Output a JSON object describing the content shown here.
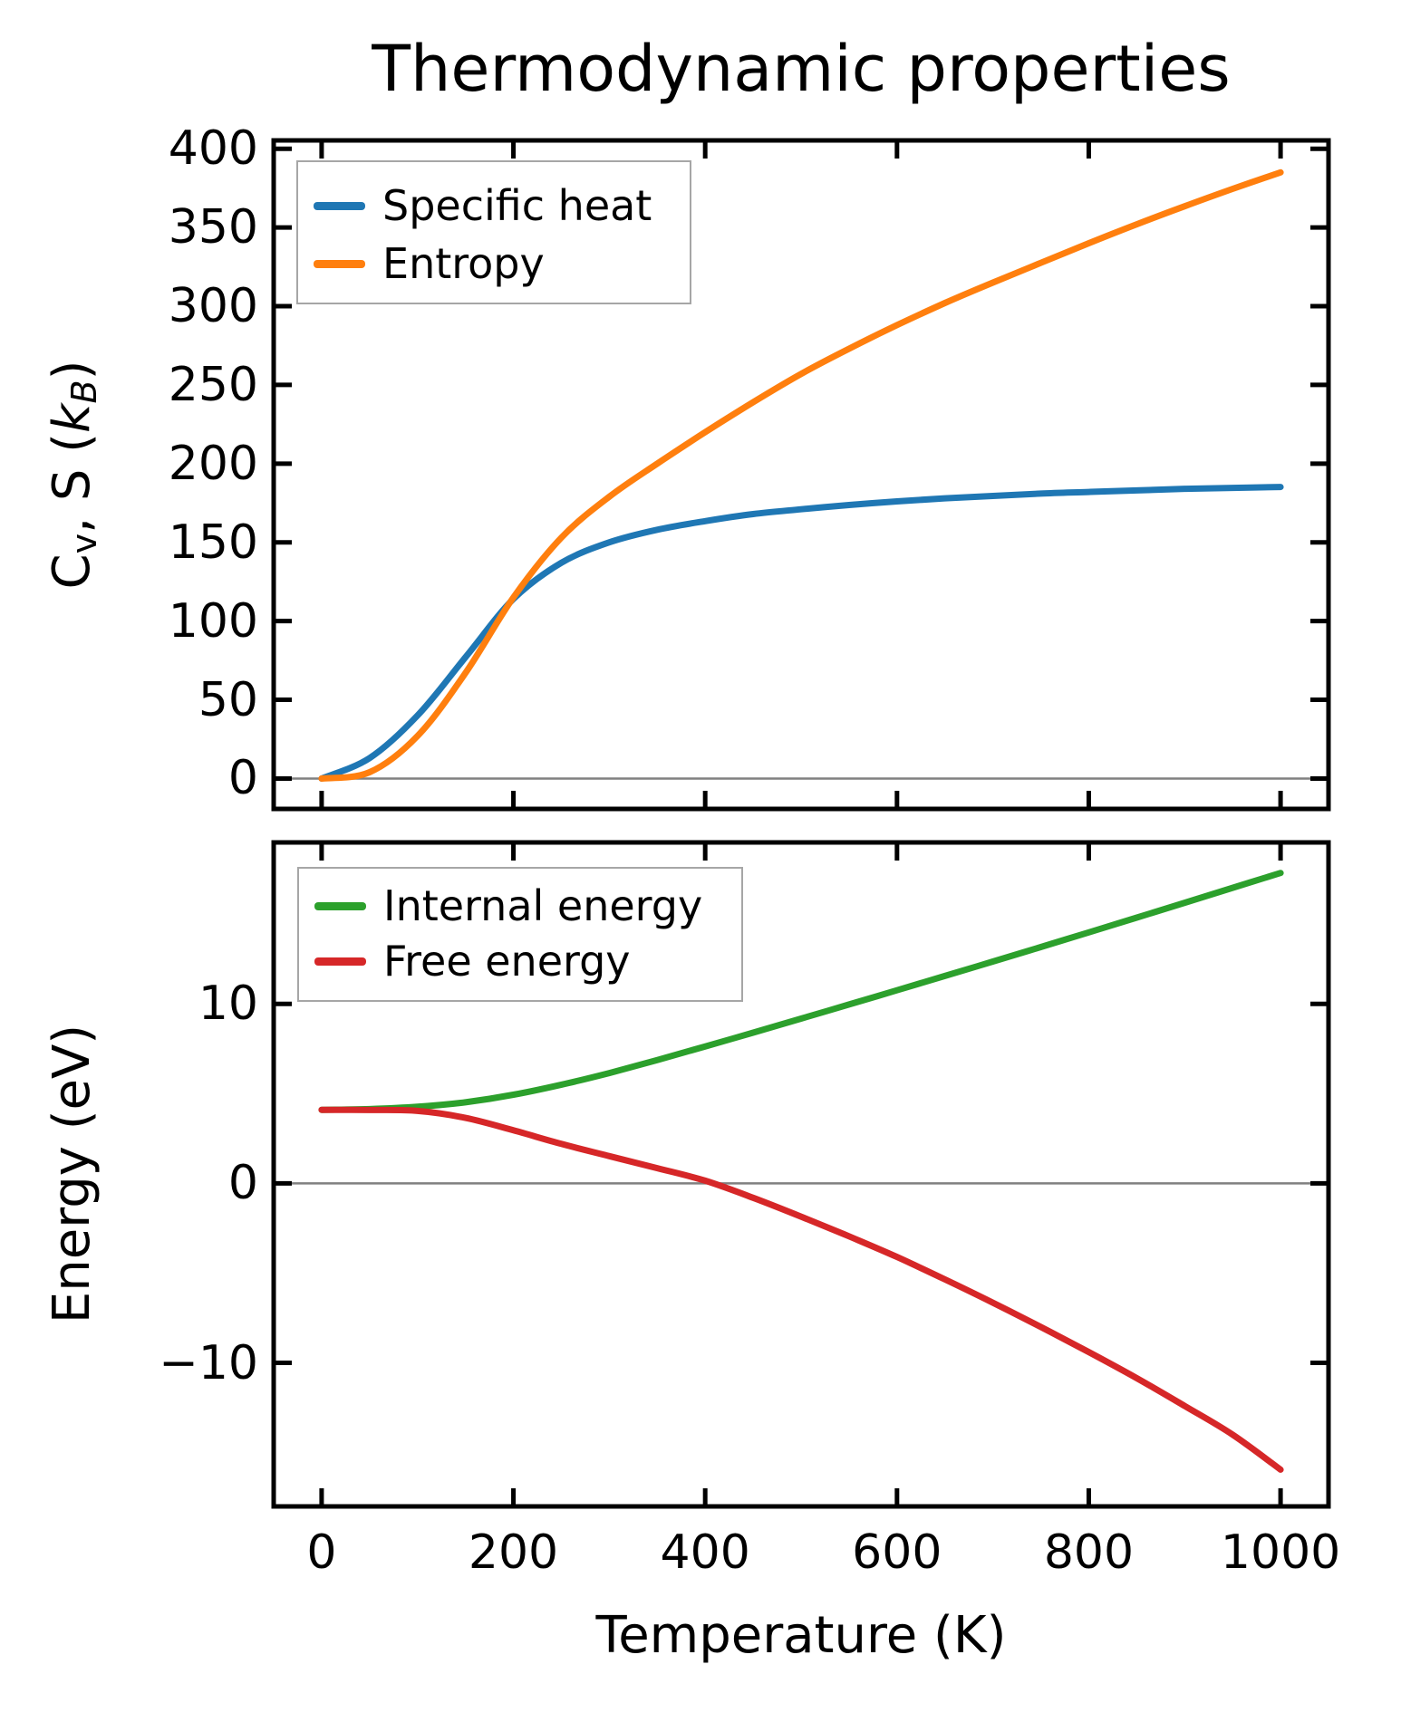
{
  "figure_title": "Thermodynamic properties",
  "colors": {
    "specific_heat": "#1f77b4",
    "entropy": "#ff7f0e",
    "internal_energy": "#2ca02c",
    "free_energy": "#d62728",
    "spine": "#000000",
    "zero_line": "#808080",
    "legend_border": "#a6a6a6"
  },
  "chart_data": [
    {
      "type": "line",
      "title": "Thermodynamic properties",
      "ylabel": "Cv, S (kB)",
      "ylabel_rich": {
        "pre": "C",
        "sub1": "v",
        "mid": ", S (",
        "k": "k",
        "sub2": "B",
        "post": ")"
      },
      "xlabel": "",
      "xlim": [
        -50,
        1050
      ],
      "ylim": [
        -19.3,
        405.3
      ],
      "grid": false,
      "legend_position": "upper left",
      "zero_line": true,
      "x": [
        0,
        50,
        100,
        150,
        200,
        250,
        300,
        350,
        400,
        450,
        500,
        550,
        600,
        650,
        700,
        750,
        800,
        850,
        900,
        950,
        1000
      ],
      "series": [
        {
          "name": "Specific heat",
          "color": "#1f77b4",
          "values": [
            0,
            13,
            40,
            77,
            114,
            137,
            150,
            158,
            163.5,
            168,
            171,
            173.7,
            176,
            178,
            179.5,
            181,
            182,
            183,
            184,
            184.6,
            185.2
          ]
        },
        {
          "name": "Entropy",
          "color": "#ff7f0e",
          "values": [
            0,
            4,
            27,
            67,
            115,
            153,
            179,
            200,
            220,
            239,
            257,
            273,
            288,
            302,
            315,
            327.5,
            340,
            352,
            363.5,
            374.5,
            385
          ]
        }
      ],
      "yticks": {
        "values": [
          0,
          50,
          100,
          150,
          200,
          250,
          300,
          350,
          400
        ],
        "labels": [
          "0",
          "50",
          "100",
          "150",
          "200",
          "250",
          "300",
          "350",
          "400"
        ]
      },
      "xticks": {
        "values": [
          0,
          200,
          400,
          600,
          800,
          1000
        ],
        "labels": [
          "0",
          "200",
          "400",
          "600",
          "800",
          "1000"
        ],
        "show_labels": false
      }
    },
    {
      "type": "line",
      "title": "",
      "ylabel": "Energy (eV)",
      "xlabel": "Temperature (K)",
      "xlim": [
        -50,
        1050
      ],
      "ylim": [
        -18.0,
        19.0
      ],
      "grid": false,
      "legend_position": "upper left",
      "zero_line": true,
      "x": [
        0,
        50,
        100,
        150,
        200,
        250,
        300,
        350,
        400,
        450,
        500,
        550,
        600,
        650,
        700,
        750,
        800,
        850,
        900,
        950,
        1000
      ],
      "series": [
        {
          "name": "Internal energy",
          "color": "#2ca02c",
          "values": [
            4.1,
            4.14,
            4.27,
            4.52,
            4.94,
            5.5,
            6.15,
            6.87,
            7.63,
            8.4,
            9.18,
            9.97,
            10.76,
            11.56,
            12.36,
            13.17,
            13.99,
            14.81,
            15.64,
            16.47,
            17.3
          ]
        },
        {
          "name": "Free energy",
          "color": "#d62728",
          "values": [
            4.1,
            4.09,
            4.04,
            3.65,
            2.96,
            2.2,
            1.52,
            0.85,
            0.15,
            -0.8,
            -1.85,
            -2.95,
            -4.1,
            -5.35,
            -6.65,
            -8.0,
            -9.4,
            -10.85,
            -12.4,
            -14.0,
            -15.95
          ]
        }
      ],
      "yticks": {
        "values": [
          10,
          0,
          -10
        ],
        "labels": [
          "10",
          "0",
          "−10"
        ]
      },
      "xticks": {
        "values": [
          0,
          200,
          400,
          600,
          800,
          1000
        ],
        "labels": [
          "0",
          "200",
          "400",
          "600",
          "800",
          "1000"
        ],
        "show_labels": true
      }
    }
  ]
}
